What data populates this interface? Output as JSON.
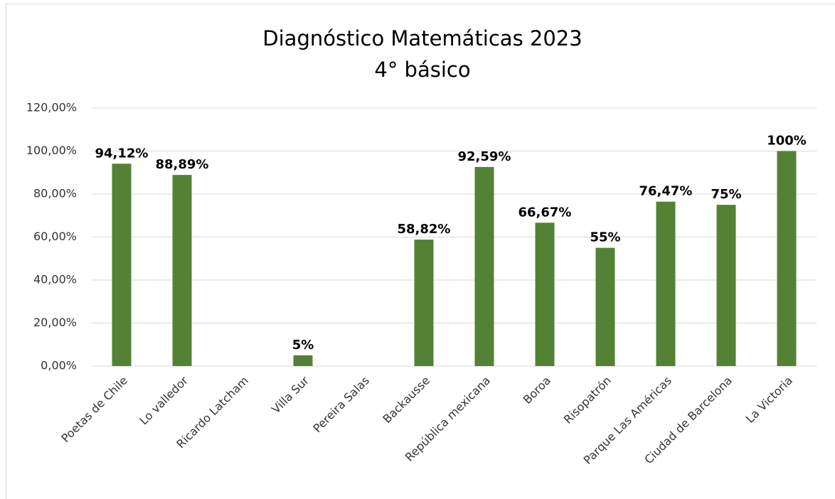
{
  "chart_data": {
    "type": "bar",
    "title": "Diagnóstico Matemáticas 2023",
    "subtitle": "4° básico",
    "categories": [
      "Poetas de Chile",
      "Lo valledor",
      "Ricardo Latcham",
      "Villa Sur",
      "Pereira Salas",
      "Backausse",
      "República mexicana",
      "Boroa",
      "Risopatrón",
      "Parque Las Américas",
      "Ciudad de Barcelona",
      "La Victoria"
    ],
    "values": [
      94.12,
      88.89,
      null,
      5,
      null,
      58.82,
      92.59,
      66.67,
      55,
      76.47,
      75,
      100
    ],
    "value_labels": [
      "94,12%",
      "88,89%",
      null,
      "5%",
      null,
      "58,82%",
      "92,59%",
      "66,67%",
      "55%",
      "76,47%",
      "75%",
      "100%"
    ],
    "color": "#548235",
    "ylim": [
      0,
      120
    ],
    "yticks": [
      {
        "value": 0,
        "label": "0,00%"
      },
      {
        "value": 20,
        "label": "20,00%"
      },
      {
        "value": 40,
        "label": "40,00%"
      },
      {
        "value": 60,
        "label": "60,00%"
      },
      {
        "value": 80,
        "label": "80,00%"
      },
      {
        "value": 100,
        "label": "100,00%"
      },
      {
        "value": 120,
        "label": "120,00%"
      }
    ],
    "grid": true
  }
}
